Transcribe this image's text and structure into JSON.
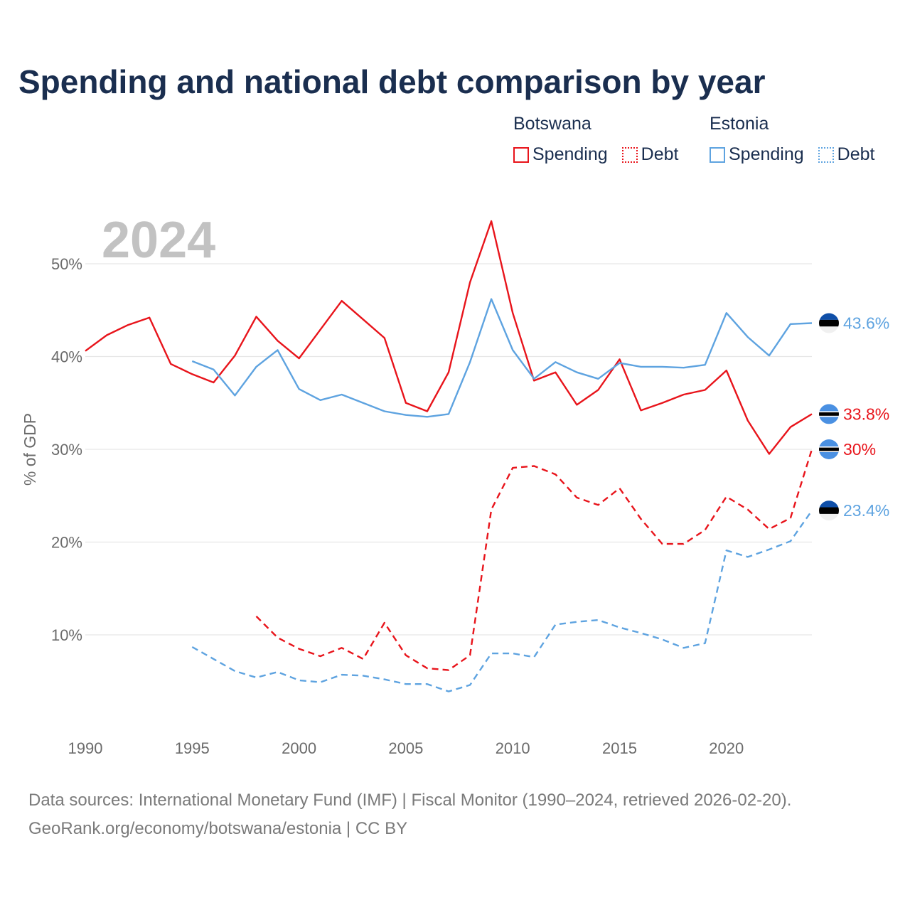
{
  "title": "Spending and national debt comparison by year",
  "legend": {
    "groups": [
      {
        "country": "Botswana",
        "spending_label": "Spending",
        "debt_label": "Debt",
        "color": "#e8141b"
      },
      {
        "country": "Estonia",
        "spending_label": "Spending",
        "debt_label": "Debt",
        "color": "#5ea3e0"
      }
    ]
  },
  "year_watermark": "2024",
  "footer": {
    "source": "Data sources: International Monetary Fund (IMF) | Fiscal Monitor (1990–2024, retrieved 2026-02-20).",
    "link": "GeoRank.org/economy/botswana/estonia | CC BY"
  },
  "chart_data": {
    "type": "line",
    "title": "Spending and national debt comparison by year",
    "ylabel": "% of GDP",
    "xlabel": "",
    "xlim": [
      1990,
      2024
    ],
    "ylim": [
      0,
      55
    ],
    "grid": true,
    "x_ticks": [
      1990,
      1995,
      2000,
      2005,
      2010,
      2015,
      2020
    ],
    "x_tick_labels": [
      "1990",
      "1995",
      "2000",
      "2005",
      "2010",
      "2015",
      "2020"
    ],
    "y_ticks": [
      10,
      20,
      30,
      40,
      50
    ],
    "y_tick_labels": [
      "10%",
      "20%",
      "30%",
      "40%",
      "50%"
    ],
    "series": [
      {
        "name": "Botswana Spending",
        "country": "Botswana",
        "metric": "Spending",
        "color": "#e8141b",
        "dashed": false,
        "end_label": "33.8%",
        "x": [
          1990,
          1991,
          1992,
          1993,
          1994,
          1995,
          1996,
          1997,
          1998,
          1999,
          2000,
          2001,
          2002,
          2003,
          2004,
          2005,
          2006,
          2007,
          2008,
          2009,
          2010,
          2011,
          2012,
          2013,
          2014,
          2015,
          2016,
          2017,
          2018,
          2019,
          2020,
          2021,
          2022,
          2023,
          2024
        ],
        "values": [
          40.6,
          42.3,
          43.4,
          44.2,
          39.2,
          38.1,
          37.2,
          40.1,
          44.3,
          41.7,
          39.8,
          42.9,
          46.0,
          44.0,
          42.0,
          35.0,
          34.1,
          38.3,
          48.0,
          54.6,
          44.7,
          37.4,
          38.3,
          34.8,
          36.4,
          39.7,
          34.2,
          35.0,
          35.9,
          36.4,
          38.5,
          33.1,
          29.5,
          32.4,
          33.8
        ]
      },
      {
        "name": "Botswana Debt",
        "country": "Botswana",
        "metric": "Debt",
        "color": "#e8141b",
        "dashed": true,
        "end_label": "30%",
        "x": [
          1998,
          1999,
          2000,
          2001,
          2002,
          2003,
          2004,
          2005,
          2006,
          2007,
          2008,
          2009,
          2010,
          2011,
          2012,
          2013,
          2014,
          2015,
          2016,
          2017,
          2018,
          2019,
          2020,
          2021,
          2022,
          2023,
          2024
        ],
        "values": [
          12.0,
          9.7,
          8.5,
          7.7,
          8.6,
          7.4,
          11.3,
          7.8,
          6.4,
          6.2,
          7.8,
          23.5,
          28.0,
          28.2,
          27.3,
          24.8,
          24.0,
          25.8,
          22.5,
          19.8,
          19.8,
          21.3,
          24.9,
          23.5,
          21.4,
          22.6,
          30.0
        ]
      },
      {
        "name": "Estonia Spending",
        "country": "Estonia",
        "metric": "Spending",
        "color": "#5ea3e0",
        "dashed": false,
        "end_label": "43.6%",
        "x": [
          1995,
          1996,
          1997,
          1998,
          1999,
          2000,
          2001,
          2002,
          2003,
          2004,
          2005,
          2006,
          2007,
          2008,
          2009,
          2010,
          2011,
          2012,
          2013,
          2014,
          2015,
          2016,
          2017,
          2018,
          2019,
          2020,
          2021,
          2022,
          2023,
          2024
        ],
        "values": [
          39.5,
          38.6,
          35.8,
          38.9,
          40.7,
          36.5,
          35.3,
          35.9,
          35.0,
          34.1,
          33.7,
          33.5,
          33.8,
          39.4,
          46.2,
          40.7,
          37.6,
          39.4,
          38.3,
          37.6,
          39.3,
          38.9,
          38.9,
          38.8,
          39.1,
          44.7,
          42.1,
          40.1,
          43.5,
          43.6
        ]
      },
      {
        "name": "Estonia Debt",
        "country": "Estonia",
        "metric": "Debt",
        "color": "#5ea3e0",
        "dashed": true,
        "end_label": "23.4%",
        "x": [
          1995,
          1996,
          1997,
          1998,
          1999,
          2000,
          2001,
          2002,
          2003,
          2004,
          2005,
          2006,
          2007,
          2008,
          2009,
          2010,
          2011,
          2012,
          2013,
          2014,
          2015,
          2016,
          2017,
          2018,
          2019,
          2020,
          2021,
          2022,
          2023,
          2024
        ],
        "values": [
          8.7,
          7.4,
          6.1,
          5.4,
          6.0,
          5.1,
          4.9,
          5.7,
          5.6,
          5.2,
          4.7,
          4.7,
          3.9,
          4.6,
          8.0,
          8.0,
          7.6,
          11.1,
          11.4,
          11.6,
          10.8,
          10.2,
          9.5,
          8.6,
          9.1,
          19.1,
          18.4,
          19.2,
          20.1,
          23.4
        ]
      }
    ]
  }
}
